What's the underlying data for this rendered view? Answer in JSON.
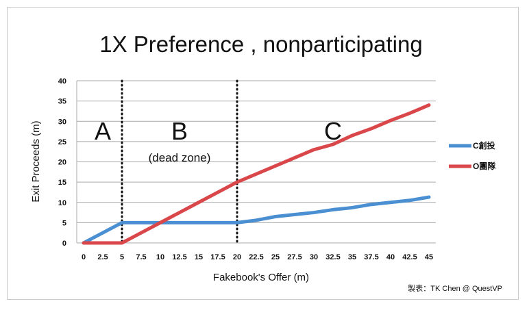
{
  "chart_data": {
    "type": "line",
    "title": "1X Preference , nonparticipating",
    "xlabel": "Fakebook's Offer (m)",
    "ylabel": "Exit Proceeds (m)",
    "categories": [
      "0",
      "2.5",
      "5",
      "7.5",
      "10",
      "12.5",
      "15",
      "17.5",
      "20",
      "22.5",
      "25",
      "27.5",
      "30",
      "32.5",
      "35",
      "37.5",
      "40",
      "42.5",
      "45"
    ],
    "x": [
      0,
      2.5,
      5,
      7.5,
      10,
      12.5,
      15,
      17.5,
      20,
      22.5,
      25,
      27.5,
      30,
      32.5,
      35,
      37.5,
      40,
      42.5,
      45
    ],
    "ylim": [
      0,
      40
    ],
    "yticks": [
      0,
      5,
      10,
      15,
      20,
      25,
      30,
      35,
      40
    ],
    "grid": true,
    "legend_position": "right",
    "series": [
      {
        "name": "C創投",
        "color": "#4a8fd1",
        "values": [
          0,
          2.5,
          5,
          5,
          5,
          5,
          5,
          5,
          5,
          5.6,
          6.5,
          7,
          7.5,
          8.2,
          8.7,
          9.5,
          10,
          10.5,
          11.3
        ]
      },
      {
        "name": "O團隊",
        "color": "#d9474a",
        "values": [
          0,
          0,
          0,
          2.5,
          5,
          7.5,
          10,
          12.5,
          15,
          17,
          19,
          21,
          23,
          24.3,
          26.5,
          28.2,
          30.2,
          32,
          34
        ]
      }
    ],
    "dividers_at": [
      5,
      20
    ],
    "regions": [
      {
        "letter": "A",
        "note": ""
      },
      {
        "letter": "B",
        "note": "(dead zone)"
      },
      {
        "letter": "C",
        "note": ""
      }
    ],
    "credit": "製表：TK Chen @ QuestVP"
  }
}
